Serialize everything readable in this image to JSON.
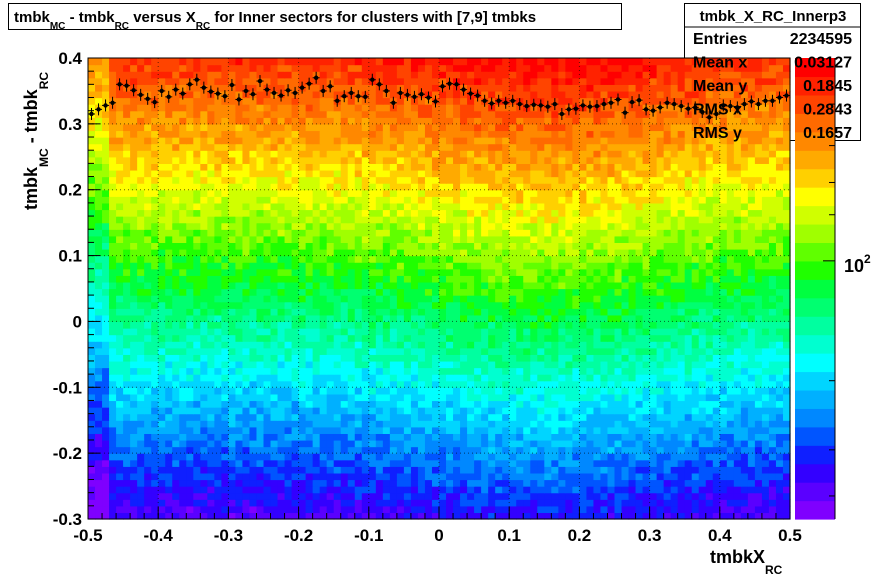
{
  "title": {
    "p1": "tmbk",
    "s1": "MC",
    "p2": " - tmbk",
    "s2": "RC",
    "p3": " versus X",
    "s3": "RC",
    "p4": " for Inner sectors for clusters with [7,9] tmbks"
  },
  "stats": {
    "name": "tmbk_X_RC_Innerp3",
    "rows": [
      {
        "label": "Entries",
        "value": "2234595"
      },
      {
        "label": "Mean x",
        "value": "0.03127"
      },
      {
        "label": "Mean y",
        "value": "0.1845"
      },
      {
        "label": "RMS x",
        "value": "0.2843"
      },
      {
        "label": "RMS y",
        "value": "0.1657"
      }
    ]
  },
  "chart_data": {
    "type": "heatmap",
    "xlabel": {
      "main": "tmbkX",
      "sub": "RC"
    },
    "ylabel": {
      "p1": "tmbk",
      "s1": "MC",
      "p2": " - tmbk",
      "s2": "RC"
    },
    "xlim": [
      -0.5,
      0.5
    ],
    "ylim": [
      -0.3,
      0.4
    ],
    "x_ticks": [
      "-0.5",
      "-0.4",
      "-0.3",
      "-0.2",
      "-0.1",
      "0",
      "0.1",
      "0.2",
      "0.3",
      "0.4",
      "0.5"
    ],
    "y_ticks": [
      "-0.3",
      "-0.2",
      "-0.1",
      "0",
      "0.1",
      "0.2",
      "0.3",
      "0.4"
    ],
    "grid": true,
    "colorbar": {
      "scale": "log",
      "label_base": "10",
      "label_exp": "2"
    },
    "palette": [
      "#7f00ff",
      "#5a00ff",
      "#3300ff",
      "#0f1fff",
      "#0055ff",
      "#0088ff",
      "#00b0ff",
      "#00d5ff",
      "#00ffff",
      "#00ffd0",
      "#00ffa0",
      "#00ff70",
      "#00ff40",
      "#20ff00",
      "#60ff00",
      "#a0ff00",
      "#d0ff00",
      "#ffff00",
      "#ffd000",
      "#ffaa00",
      "#ff8800",
      "#ff6a00",
      "#ff4400",
      "#ff2200",
      "#ff0000"
    ],
    "profile_x": [
      -0.495,
      -0.485,
      -0.475,
      -0.465,
      -0.455,
      -0.445,
      -0.435,
      -0.425,
      -0.415,
      -0.405,
      -0.395,
      -0.385,
      -0.375,
      -0.365,
      -0.355,
      -0.345,
      -0.335,
      -0.325,
      -0.315,
      -0.305,
      -0.295,
      -0.285,
      -0.275,
      -0.265,
      -0.255,
      -0.245,
      -0.235,
      -0.225,
      -0.215,
      -0.205,
      -0.195,
      -0.185,
      -0.175,
      -0.165,
      -0.155,
      -0.145,
      -0.135,
      -0.125,
      -0.115,
      -0.105,
      -0.095,
      -0.085,
      -0.075,
      -0.065,
      -0.055,
      -0.045,
      -0.035,
      -0.025,
      -0.015,
      -0.005,
      0.005,
      0.015,
      0.025,
      0.035,
      0.045,
      0.055,
      0.065,
      0.075,
      0.085,
      0.095,
      0.105,
      0.115,
      0.125,
      0.135,
      0.145,
      0.155,
      0.165,
      0.175,
      0.185,
      0.195,
      0.205,
      0.215,
      0.225,
      0.235,
      0.245,
      0.255,
      0.265,
      0.275,
      0.285,
      0.295,
      0.305,
      0.315,
      0.325,
      0.335,
      0.345,
      0.355,
      0.365,
      0.375,
      0.385,
      0.395,
      0.405,
      0.415,
      0.425,
      0.435,
      0.445,
      0.455,
      0.465,
      0.475,
      0.485,
      0.495
    ],
    "profile_y": [
      0.315,
      0.322,
      0.328,
      0.332,
      0.36,
      0.358,
      0.351,
      0.344,
      0.338,
      0.333,
      0.35,
      0.341,
      0.352,
      0.346,
      0.36,
      0.367,
      0.355,
      0.349,
      0.346,
      0.342,
      0.359,
      0.337,
      0.35,
      0.345,
      0.365,
      0.352,
      0.347,
      0.343,
      0.351,
      0.347,
      0.355,
      0.361,
      0.37,
      0.35,
      0.357,
      0.335,
      0.342,
      0.347,
      0.342,
      0.341,
      0.367,
      0.36,
      0.35,
      0.332,
      0.347,
      0.344,
      0.341,
      0.345,
      0.34,
      0.334,
      0.357,
      0.361,
      0.36,
      0.352,
      0.346,
      0.343,
      0.335,
      0.331,
      0.335,
      0.332,
      0.335,
      0.33,
      0.327,
      0.329,
      0.328,
      0.326,
      0.33,
      0.315,
      0.322,
      0.323,
      0.328,
      0.326,
      0.327,
      0.33,
      0.332,
      0.337,
      0.317,
      0.333,
      0.336,
      0.322,
      0.32,
      0.325,
      0.332,
      0.33,
      0.327,
      0.323,
      0.325,
      0.318,
      0.31,
      0.315,
      0.328,
      0.327,
      0.325,
      0.33,
      0.334,
      0.33,
      0.335,
      0.335,
      0.34,
      0.343
    ]
  }
}
